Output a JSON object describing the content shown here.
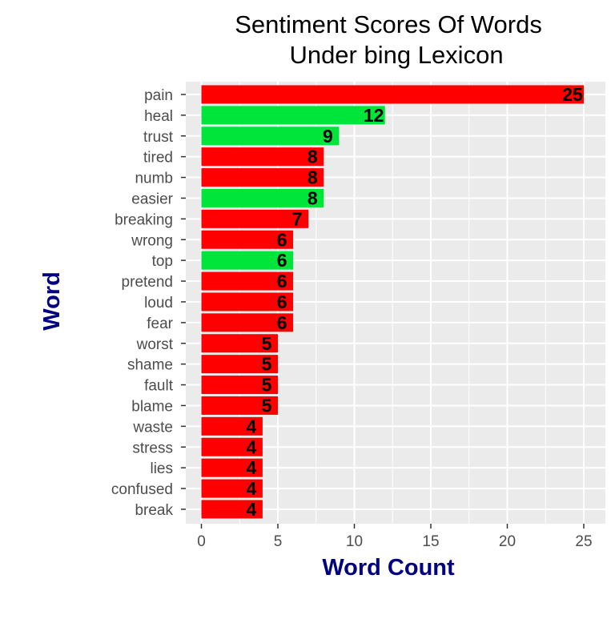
{
  "chart_data": {
    "type": "bar",
    "orientation": "horizontal",
    "title_line1": "Sentiment Scores Of Words",
    "title_line2": "Under bing Lexicon",
    "xlabel": "Word Count",
    "ylabel": "Word",
    "xlim": [
      0,
      26
    ],
    "x_ticks": [
      "0",
      "5",
      "10",
      "15",
      "20",
      "25"
    ],
    "grid": true,
    "legend": "none",
    "colors": {
      "negative": "#ff0000",
      "positive": "#00e53a",
      "panel": "#ebebeb",
      "grid": "#ffffff",
      "axis_title": "#000080"
    },
    "categories": [
      "pain",
      "heal",
      "trust",
      "tired",
      "numb",
      "easier",
      "breaking",
      "wrong",
      "top",
      "pretend",
      "loud",
      "fear",
      "worst",
      "shame",
      "fault",
      "blame",
      "waste",
      "stress",
      "lies",
      "confused",
      "break"
    ],
    "values": [
      25,
      12,
      9,
      8,
      8,
      8,
      7,
      6,
      6,
      6,
      6,
      6,
      5,
      5,
      5,
      5,
      4,
      4,
      4,
      4,
      4
    ],
    "sentiment": [
      "negative",
      "positive",
      "positive",
      "negative",
      "negative",
      "positive",
      "negative",
      "negative",
      "positive",
      "negative",
      "negative",
      "negative",
      "negative",
      "negative",
      "negative",
      "negative",
      "negative",
      "negative",
      "negative",
      "negative",
      "negative"
    ]
  }
}
